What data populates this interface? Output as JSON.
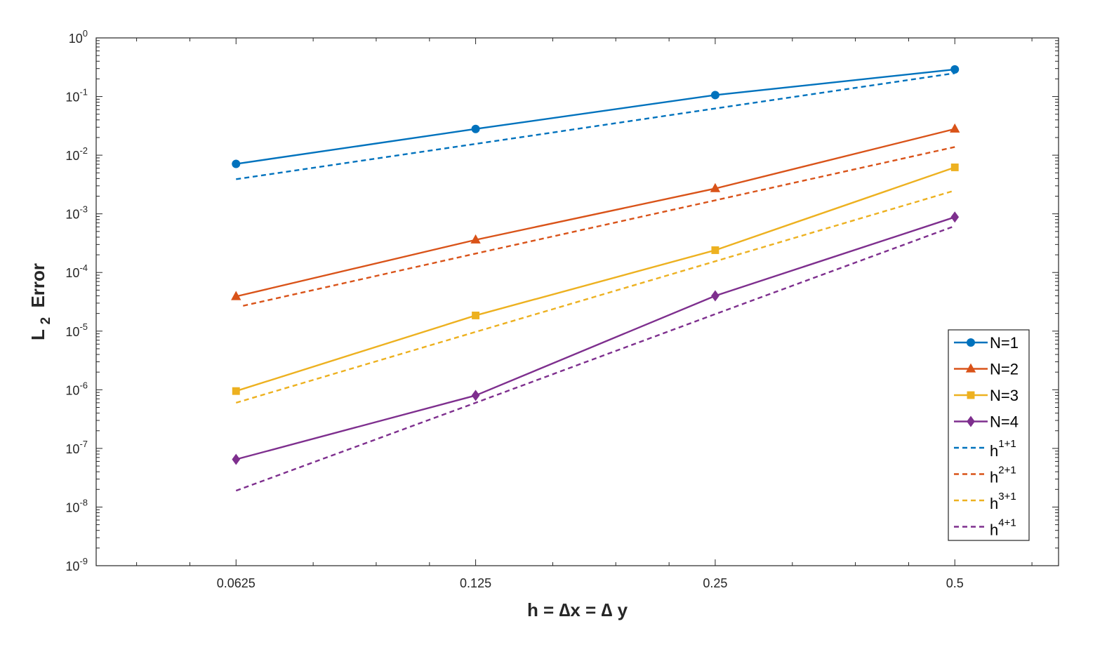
{
  "chart_data": {
    "type": "line",
    "xscale": "log2",
    "yscale": "log",
    "x": [
      0.0625,
      0.125,
      0.25,
      0.5
    ],
    "x_tick_labels": [
      "0.0625",
      "0.125",
      "0.25",
      "0.5"
    ],
    "xlim": [
      0.0417,
      0.675
    ],
    "ylim": [
      1e-09,
      1
    ],
    "y_tick_exponents": [
      0,
      -1,
      -2,
      -3,
      -4,
      -5,
      -6,
      -7,
      -8,
      -9
    ],
    "y_tick_base": "10",
    "xlabel": "h = ∆x = ∆ y",
    "ylabel": "Error",
    "ylabel_prefix": "L",
    "ylabel_subscript": "2",
    "grid": true,
    "legend_position": "bottom-right",
    "series": [
      {
        "name": "N=1",
        "values": [
          0.0071,
          0.028,
          0.106,
          0.29
        ],
        "color": "#0072BD",
        "style": "solid",
        "marker": "circle"
      },
      {
        "name": "N=2",
        "values": [
          3.9e-05,
          0.00036,
          0.0027,
          0.028
        ],
        "color": "#D95319",
        "style": "solid",
        "marker": "triangle"
      },
      {
        "name": "N=3",
        "values": [
          9.5e-07,
          1.85e-05,
          0.00024,
          0.0062
        ],
        "color": "#EDB120",
        "style": "solid",
        "marker": "square"
      },
      {
        "name": "N=4",
        "values": [
          6.5e-08,
          8e-07,
          4e-05,
          0.00088
        ],
        "color": "#7E2F8E",
        "style": "solid",
        "marker": "diamond"
      },
      {
        "name": "h",
        "name_sup": "1+1",
        "values": [
          0.0039,
          0.0156,
          0.0625,
          0.25
        ],
        "color": "#0072BD",
        "style": "dashed",
        "marker": "none"
      },
      {
        "name": "h",
        "name_sup": "2+1",
        "values": [
          2.7e-05,
          0.00021,
          0.0017,
          0.0138
        ],
        "color": "#D95319",
        "style": "dashed",
        "marker": "none"
      },
      {
        "name": "h",
        "name_sup": "3+1",
        "values": [
          6e-07,
          9.7e-06,
          0.000155,
          0.0025
        ],
        "color": "#EDB120",
        "style": "dashed",
        "marker": "none"
      },
      {
        "name": "h",
        "name_sup": "4+1",
        "values": [
          1.9e-08,
          6e-07,
          1.95e-05,
          0.00062
        ],
        "color": "#7E2F8E",
        "style": "dashed",
        "marker": "none"
      }
    ]
  }
}
